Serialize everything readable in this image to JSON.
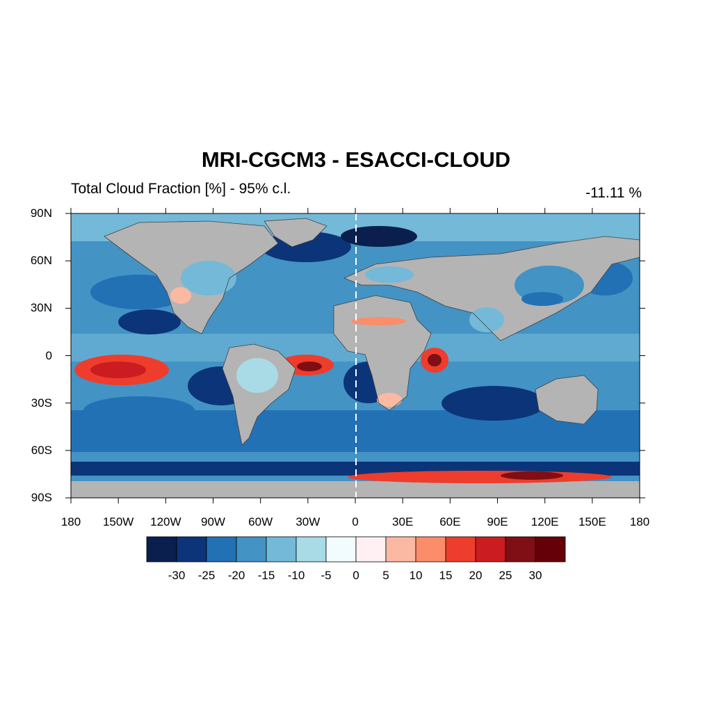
{
  "title": "MRI-CGCM3 - ESACCI-CLOUD",
  "subtitle_left": "Total Cloud Fraction [%] - 95% c.l.",
  "subtitle_right": "-11.11 %",
  "lat_ticks": [
    "90N",
    "60N",
    "30N",
    "0",
    "30S",
    "60S",
    "90S"
  ],
  "lon_ticks": [
    "180",
    "150W",
    "120W",
    "90W",
    "60W",
    "30W",
    "0",
    "30E",
    "60E",
    "90E",
    "120E",
    "150E",
    "180"
  ],
  "colorbar": {
    "levels": [
      "-30",
      "-25",
      "-20",
      "-15",
      "-10",
      "-5",
      "0",
      "5",
      "10",
      "15",
      "20",
      "25",
      "30"
    ],
    "colors": [
      "#0a1f4e",
      "#0c3479",
      "#2271b5",
      "#4393c5",
      "#74b9d8",
      "#a8dbe6",
      "#f2fbfd",
      "#fff0f4",
      "#fbb9a4",
      "#fb8d6b",
      "#ee3d2c",
      "#cb1c21",
      "#7f0f14",
      "#660008"
    ]
  },
  "colors": {
    "missing_gray": "#b4b4b4",
    "coastline": "#404040",
    "prime_meridian_dash": "#ffffff"
  }
}
